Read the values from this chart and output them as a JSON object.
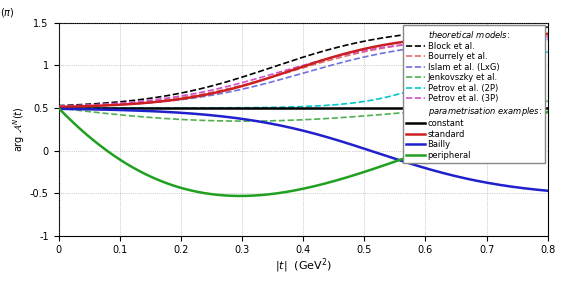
{
  "xlim": [
    0,
    0.8
  ],
  "ylim": [
    -1.0,
    1.5
  ],
  "xticks": [
    0,
    0.1,
    0.2,
    0.3,
    0.4,
    0.5,
    0.6,
    0.7,
    0.8
  ],
  "yticks": [
    -1.0,
    -0.5,
    0.0,
    0.5,
    1.0,
    1.5
  ],
  "ytick_labels": [
    "-1",
    "-0.5",
    "0",
    "0.5",
    "1",
    "1.5"
  ],
  "xtick_labels": [
    "0",
    "0.1",
    "0.2",
    "0.3",
    "0.4",
    "0.5",
    "0.6",
    "0.7",
    "0.8"
  ],
  "colors": {
    "block": "#000000",
    "bourrely": "#e07070",
    "islam": "#7070e0",
    "jenkovszky": "#50b050",
    "petrov2p": "#00c8c8",
    "petrov3p": "#d050d0",
    "constant": "#000000",
    "standard": "#cc2020",
    "bailly": "#2020cc",
    "peripheral": "#20a020"
  },
  "lw_dashed": 1.2,
  "lw_solid": 1.8,
  "legend_fontsize": 6.0,
  "tick_fontsize": 7,
  "label_fontsize": 8
}
